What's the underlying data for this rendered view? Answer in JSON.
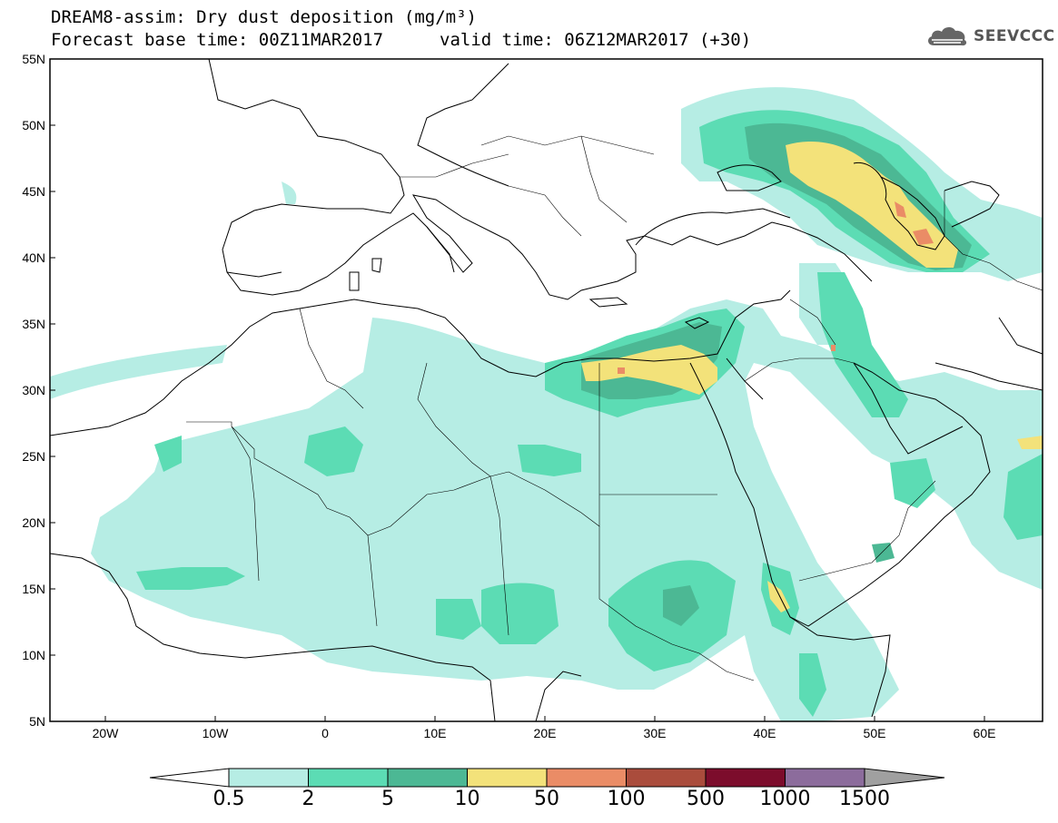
{
  "header": {
    "title_line1": "DREAM8-assim: Dry dust deposition (mg/m³)",
    "title_line2": "Forecast base time: 00Z11MAR2017",
    "valid_time": "valid time: 06Z12MAR2017 (+30)",
    "logo_text": "SEEVCCC"
  },
  "axes": {
    "lat_labels": [
      "55N",
      "50N",
      "45N",
      "40N",
      "35N",
      "30N",
      "25N",
      "20N",
      "15N",
      "10N",
      "5N"
    ],
    "lon_labels": [
      "20W",
      "10W",
      "0",
      "10E",
      "20E",
      "30E",
      "40E",
      "50E",
      "60E"
    ]
  },
  "colorbar": {
    "thresholds": [
      "0.5",
      "2",
      "5",
      "10",
      "50",
      "100",
      "500",
      "1000",
      "1500"
    ],
    "colors": [
      "#b6ede4",
      "#5cdcb4",
      "#4cb894",
      "#f3e27a",
      "#ea8c66",
      "#aa4c3c",
      "#7c0c2c",
      "#8c6c9c",
      "#a0a0a0"
    ],
    "units": "mg/m³"
  },
  "map": {
    "lon_range": [
      -25,
      65
    ],
    "lat_range": [
      5,
      55
    ],
    "features": [
      "coastlines",
      "country-borders",
      "dust-deposition-shading"
    ]
  }
}
